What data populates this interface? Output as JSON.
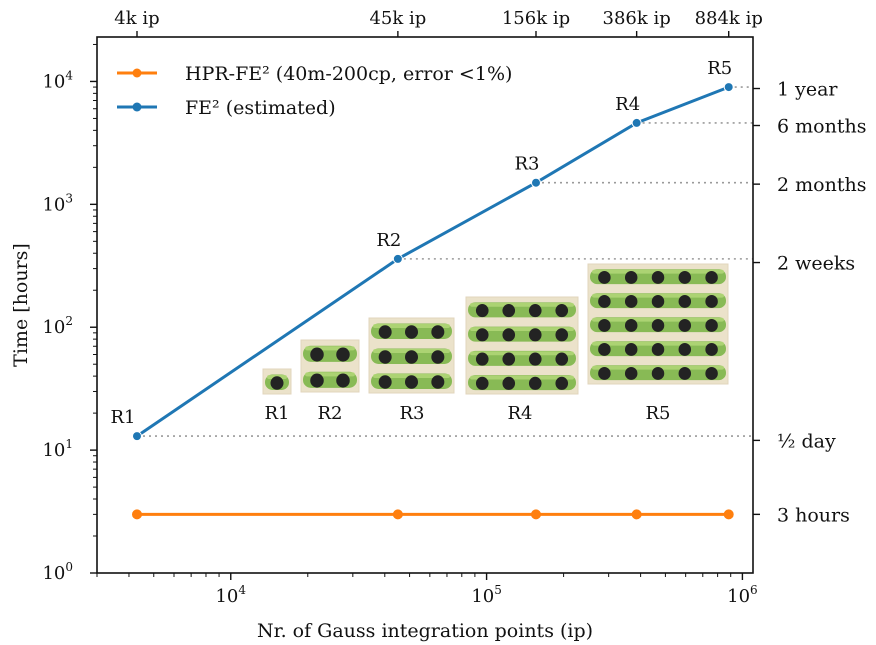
{
  "chart_data": {
    "type": "line",
    "xscale": "log",
    "yscale": "log",
    "xlim": [
      3000,
      1100000
    ],
    "ylim": [
      1,
      23000
    ],
    "xlabel": "Nr. of Gauss integration points (ip)",
    "ylabel": "Time [hours]",
    "x_ticks": [
      {
        "value": 10000,
        "base": "10",
        "exp": "4"
      },
      {
        "value": 100000,
        "base": "10",
        "exp": "5"
      },
      {
        "value": 1000000,
        "base": "10",
        "exp": "6"
      }
    ],
    "y_ticks": [
      {
        "value": 1,
        "base": "10",
        "exp": "0"
      },
      {
        "value": 10,
        "base": "10",
        "exp": "1"
      },
      {
        "value": 100,
        "base": "10",
        "exp": "2"
      },
      {
        "value": 1000,
        "base": "10",
        "exp": "3"
      },
      {
        "value": 10000,
        "base": "10",
        "exp": "4"
      }
    ],
    "top_axis_labels": [
      "4k ip",
      "45k ip",
      "156k ip",
      "386k ip",
      "884k ip"
    ],
    "right_axis_labels": [
      {
        "value": 8760,
        "label": "1 year"
      },
      {
        "value": 4380,
        "label": "6 months"
      },
      {
        "value": 1460,
        "label": "2 months"
      },
      {
        "value": 336,
        "label": "2 weeks"
      },
      {
        "value": 12,
        "label": "½ day"
      },
      {
        "value": 3,
        "label": "3 hours"
      }
    ],
    "x": [
      4300,
      45000,
      156000,
      386000,
      884000
    ],
    "point_labels": [
      "R1",
      "R2",
      "R3",
      "R4",
      "R5"
    ],
    "series": [
      {
        "name": "HPR-FE² (40m-200cp, error <1%)",
        "color": "#ff7f0e",
        "values": [
          3,
          3,
          3,
          3,
          3
        ]
      },
      {
        "name": "FE² (estimated)",
        "color": "#1f77b4",
        "values": [
          13,
          360,
          1500,
          4600,
          9000
        ]
      }
    ],
    "inset_labels": [
      "R1",
      "R2",
      "R3",
      "R4",
      "R5"
    ],
    "legend_position": "top-left",
    "grid": false
  },
  "colors": {
    "cell_green": "#7db648",
    "cell_green_light": "#b5da7a",
    "fiber_black": "#232323",
    "box_tan": "#dccba0",
    "guide": "#9a9a9a"
  }
}
